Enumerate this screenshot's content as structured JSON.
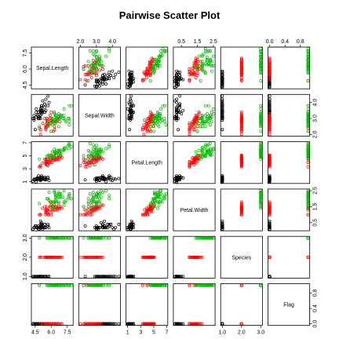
{
  "chart_data": {
    "type": "scatter",
    "title": "Pairwise Scatter Plot",
    "variables": [
      "Sepal.Length",
      "Sepal.Width",
      "Petal.Length",
      "Petal.Width",
      "Species",
      "Flag"
    ],
    "ranges": [
      [
        4.3,
        7.9
      ],
      [
        2.0,
        4.4
      ],
      [
        1.0,
        6.9
      ],
      [
        0.1,
        2.5
      ],
      [
        1,
        3
      ],
      [
        0,
        1
      ]
    ],
    "ticks": [
      [
        4.5,
        6.0,
        7.5
      ],
      [
        2.0,
        3.0,
        4.0
      ],
      [
        1,
        3,
        5,
        7
      ],
      [
        0.5,
        1.5,
        2.5
      ],
      [
        1.0,
        2.0,
        3.0
      ],
      [
        0.0,
        0.4,
        0.8
      ]
    ],
    "tick_labels": [
      [
        "4.5",
        "6.0",
        "7.5"
      ],
      [
        "2.0",
        "3.0",
        "4.0"
      ],
      [
        "1",
        "3",
        "5",
        "7"
      ],
      [
        "0.5",
        "1.5",
        "2.5"
      ],
      [
        "1.0",
        "2.0",
        "3.0"
      ],
      [
        "0.0",
        "0.4",
        "0.8"
      ]
    ],
    "series": [
      {
        "color": "#000000",
        "points": [
          [
            5.1,
            3.5,
            1.4,
            0.2,
            1,
            0
          ],
          [
            4.9,
            3.0,
            1.4,
            0.2,
            1,
            0
          ],
          [
            4.7,
            3.2,
            1.3,
            0.2,
            1,
            0
          ],
          [
            4.6,
            3.1,
            1.5,
            0.2,
            1,
            0
          ],
          [
            5.0,
            3.6,
            1.4,
            0.2,
            1,
            0
          ],
          [
            5.4,
            3.9,
            1.7,
            0.4,
            1,
            0
          ],
          [
            4.6,
            3.4,
            1.4,
            0.3,
            1,
            0
          ],
          [
            5.0,
            3.4,
            1.5,
            0.2,
            1,
            0
          ],
          [
            4.4,
            2.9,
            1.4,
            0.2,
            1,
            0
          ],
          [
            4.9,
            3.1,
            1.5,
            0.1,
            1,
            0
          ],
          [
            5.4,
            3.7,
            1.5,
            0.2,
            1,
            0
          ],
          [
            4.8,
            3.4,
            1.6,
            0.2,
            1,
            0
          ],
          [
            4.8,
            3.0,
            1.4,
            0.1,
            1,
            0
          ],
          [
            4.3,
            3.0,
            1.1,
            0.1,
            1,
            0
          ],
          [
            5.8,
            4.0,
            1.2,
            0.2,
            1,
            0
          ],
          [
            5.7,
            4.4,
            1.5,
            0.4,
            1,
            0
          ],
          [
            5.4,
            3.9,
            1.3,
            0.4,
            1,
            0
          ],
          [
            5.1,
            3.5,
            1.4,
            0.3,
            1,
            0
          ],
          [
            5.7,
            3.8,
            1.7,
            0.3,
            1,
            0
          ],
          [
            5.1,
            3.8,
            1.5,
            0.3,
            1,
            0
          ],
          [
            5.4,
            3.4,
            1.7,
            0.2,
            1,
            0
          ],
          [
            5.1,
            3.7,
            1.5,
            0.4,
            1,
            0
          ],
          [
            4.6,
            3.6,
            1.0,
            0.2,
            1,
            0
          ],
          [
            5.1,
            3.3,
            1.7,
            0.5,
            1,
            0
          ],
          [
            4.8,
            3.4,
            1.9,
            0.2,
            1,
            0
          ],
          [
            5.0,
            3.0,
            1.6,
            0.2,
            1,
            0
          ],
          [
            5.0,
            3.4,
            1.6,
            0.4,
            1,
            0
          ],
          [
            5.2,
            3.5,
            1.5,
            0.2,
            1,
            0
          ],
          [
            5.2,
            3.4,
            1.4,
            0.2,
            1,
            0
          ],
          [
            4.7,
            3.2,
            1.6,
            0.2,
            1,
            0
          ],
          [
            4.8,
            3.1,
            1.6,
            0.2,
            1,
            0
          ],
          [
            5.4,
            3.4,
            1.5,
            0.4,
            1,
            0
          ],
          [
            5.2,
            4.1,
            1.5,
            0.1,
            1,
            0
          ],
          [
            5.5,
            4.2,
            1.4,
            0.2,
            1,
            0
          ],
          [
            4.9,
            3.1,
            1.5,
            0.2,
            1,
            0
          ],
          [
            5.0,
            3.2,
            1.2,
            0.2,
            1,
            0
          ],
          [
            5.5,
            3.5,
            1.3,
            0.2,
            1,
            0
          ],
          [
            4.4,
            3.0,
            1.3,
            0.2,
            1,
            0
          ],
          [
            5.1,
            3.4,
            1.5,
            0.2,
            1,
            0
          ],
          [
            5.0,
            3.5,
            1.3,
            0.3,
            1,
            0
          ],
          [
            4.5,
            2.3,
            1.3,
            0.3,
            1,
            0
          ],
          [
            4.4,
            3.2,
            1.3,
            0.2,
            1,
            0
          ],
          [
            5.0,
            3.5,
            1.6,
            0.6,
            1,
            0
          ],
          [
            5.1,
            3.8,
            1.9,
            0.4,
            1,
            0
          ],
          [
            4.8,
            3.0,
            1.4,
            0.3,
            1,
            0
          ]
        ]
      },
      {
        "color": "#ff0000",
        "points": [
          [
            7.0,
            3.2,
            4.7,
            1.4,
            2,
            0
          ],
          [
            6.4,
            3.2,
            4.5,
            1.5,
            2,
            0
          ],
          [
            6.9,
            3.1,
            4.9,
            1.5,
            2,
            0
          ],
          [
            5.5,
            2.3,
            4.0,
            1.3,
            2,
            0
          ],
          [
            6.5,
            2.8,
            4.6,
            1.5,
            2,
            0
          ],
          [
            5.7,
            2.8,
            4.5,
            1.3,
            2,
            0
          ],
          [
            6.3,
            3.3,
            4.7,
            1.6,
            2,
            0
          ],
          [
            4.9,
            2.4,
            3.3,
            1.0,
            2,
            1
          ],
          [
            6.6,
            2.9,
            4.6,
            1.3,
            2,
            0
          ],
          [
            5.2,
            2.7,
            3.9,
            1.4,
            2,
            0
          ],
          [
            5.0,
            2.0,
            3.5,
            1.0,
            2,
            0
          ],
          [
            5.9,
            3.0,
            4.2,
            1.5,
            2,
            0
          ],
          [
            6.0,
            2.2,
            4.0,
            1.0,
            2,
            1
          ],
          [
            6.1,
            2.9,
            4.7,
            1.4,
            2,
            0
          ],
          [
            5.6,
            2.9,
            3.6,
            1.3,
            2,
            0
          ],
          [
            6.7,
            3.1,
            4.4,
            1.4,
            2,
            0
          ],
          [
            5.6,
            3.0,
            4.5,
            1.5,
            2,
            0
          ],
          [
            5.8,
            2.7,
            4.1,
            1.0,
            2,
            0
          ],
          [
            6.2,
            2.2,
            4.5,
            1.5,
            2,
            0
          ],
          [
            5.6,
            2.5,
            3.9,
            1.1,
            2,
            0
          ],
          [
            5.9,
            3.2,
            4.8,
            1.8,
            2,
            0
          ],
          [
            6.1,
            2.8,
            4.0,
            1.3,
            2,
            1
          ],
          [
            6.3,
            2.5,
            4.9,
            1.5,
            2,
            0
          ],
          [
            6.1,
            2.8,
            4.7,
            1.2,
            2,
            0
          ],
          [
            6.4,
            2.9,
            4.3,
            1.3,
            2,
            0
          ],
          [
            6.6,
            3.0,
            4.4,
            1.4,
            2,
            0
          ],
          [
            6.8,
            2.8,
            4.8,
            1.4,
            2,
            1
          ],
          [
            6.7,
            3.0,
            5.0,
            1.7,
            2,
            0
          ],
          [
            6.0,
            2.9,
            4.5,
            1.5,
            2,
            0
          ],
          [
            5.7,
            2.6,
            3.5,
            1.0,
            2,
            0
          ],
          [
            5.5,
            2.4,
            3.8,
            1.1,
            2,
            0
          ],
          [
            5.5,
            2.4,
            3.7,
            1.0,
            2,
            0
          ],
          [
            5.8,
            2.7,
            3.9,
            1.2,
            2,
            0
          ],
          [
            6.0,
            2.7,
            5.1,
            1.6,
            2,
            0
          ],
          [
            5.4,
            3.0,
            4.5,
            1.5,
            2,
            0
          ],
          [
            6.0,
            3.4,
            4.5,
            1.6,
            2,
            1
          ],
          [
            6.7,
            3.1,
            4.7,
            1.5,
            2,
            0
          ],
          [
            6.3,
            2.3,
            4.4,
            1.3,
            2,
            0
          ],
          [
            5.6,
            3.0,
            4.1,
            1.3,
            2,
            0
          ],
          [
            5.5,
            2.5,
            4.0,
            1.3,
            2,
            0
          ],
          [
            5.5,
            2.6,
            4.4,
            1.2,
            2,
            0
          ],
          [
            6.1,
            3.0,
            4.6,
            1.4,
            2,
            1
          ],
          [
            5.8,
            2.6,
            4.0,
            1.2,
            2,
            0
          ],
          [
            5.0,
            2.3,
            3.3,
            1.0,
            2,
            0
          ],
          [
            5.6,
            2.7,
            4.2,
            1.3,
            2,
            0
          ]
        ]
      },
      {
        "color": "#00bb00",
        "points": [
          [
            6.3,
            3.3,
            6.0,
            2.5,
            3,
            1
          ],
          [
            5.8,
            2.7,
            5.1,
            1.9,
            3,
            1
          ],
          [
            7.1,
            3.0,
            5.9,
            2.1,
            3,
            1
          ],
          [
            6.3,
            2.9,
            5.6,
            1.8,
            3,
            1
          ],
          [
            6.5,
            3.0,
            5.8,
            2.2,
            3,
            1
          ],
          [
            7.6,
            3.0,
            6.6,
            2.1,
            3,
            1
          ],
          [
            4.9,
            2.5,
            4.5,
            1.7,
            3,
            1
          ],
          [
            7.3,
            2.9,
            6.3,
            1.8,
            3,
            1
          ],
          [
            6.7,
            2.5,
            5.8,
            1.8,
            3,
            1
          ],
          [
            7.2,
            3.6,
            6.1,
            2.5,
            3,
            1
          ],
          [
            6.5,
            3.2,
            5.1,
            2.0,
            3,
            1
          ],
          [
            6.4,
            2.7,
            5.3,
            1.9,
            3,
            1
          ],
          [
            6.8,
            3.0,
            5.5,
            2.1,
            3,
            1
          ],
          [
            5.7,
            2.5,
            5.0,
            2.0,
            3,
            1
          ],
          [
            5.8,
            2.8,
            5.1,
            2.4,
            3,
            1
          ],
          [
            6.4,
            3.2,
            5.3,
            2.3,
            3,
            1
          ],
          [
            6.5,
            3.0,
            5.5,
            1.8,
            3,
            1
          ],
          [
            7.7,
            3.8,
            6.7,
            2.2,
            3,
            1
          ],
          [
            7.7,
            2.6,
            6.9,
            2.3,
            3,
            1
          ],
          [
            6.0,
            2.2,
            5.0,
            1.5,
            3,
            1
          ],
          [
            6.9,
            3.2,
            5.7,
            2.3,
            3,
            1
          ],
          [
            5.6,
            2.8,
            4.9,
            2.0,
            3,
            1
          ],
          [
            7.7,
            2.8,
            6.7,
            2.0,
            3,
            1
          ],
          [
            6.3,
            2.7,
            4.9,
            1.8,
            3,
            1
          ],
          [
            6.7,
            3.3,
            5.7,
            2.1,
            3,
            1
          ],
          [
            7.2,
            3.2,
            6.0,
            1.8,
            3,
            1
          ],
          [
            6.2,
            2.8,
            4.8,
            1.8,
            3,
            1
          ],
          [
            6.1,
            3.0,
            4.9,
            1.8,
            3,
            1
          ],
          [
            6.4,
            2.8,
            5.6,
            2.1,
            3,
            1
          ],
          [
            7.2,
            3.0,
            5.8,
            1.6,
            3,
            1
          ],
          [
            7.4,
            2.8,
            6.1,
            1.9,
            3,
            1
          ],
          [
            7.9,
            3.8,
            6.4,
            2.0,
            3,
            1
          ],
          [
            6.4,
            2.8,
            5.6,
            2.2,
            3,
            1
          ],
          [
            6.3,
            2.8,
            5.1,
            1.5,
            3,
            1
          ],
          [
            6.1,
            2.6,
            5.6,
            1.4,
            3,
            1
          ],
          [
            7.7,
            3.0,
            6.1,
            2.3,
            3,
            1
          ],
          [
            6.3,
            3.4,
            5.6,
            2.4,
            3,
            1
          ],
          [
            6.4,
            3.1,
            5.5,
            1.8,
            3,
            1
          ],
          [
            6.0,
            3.0,
            4.8,
            1.8,
            3,
            1
          ],
          [
            6.9,
            3.1,
            5.4,
            2.1,
            3,
            1
          ],
          [
            6.7,
            3.1,
            5.6,
            2.4,
            3,
            1
          ],
          [
            6.9,
            3.1,
            5.1,
            2.3,
            3,
            1
          ],
          [
            5.8,
            2.7,
            5.1,
            1.9,
            3,
            1
          ],
          [
            6.8,
            3.2,
            5.9,
            2.3,
            3,
            1
          ],
          [
            6.7,
            3.0,
            5.2,
            2.3,
            3,
            1
          ]
        ]
      }
    ],
    "grid": false,
    "legend": "none"
  }
}
